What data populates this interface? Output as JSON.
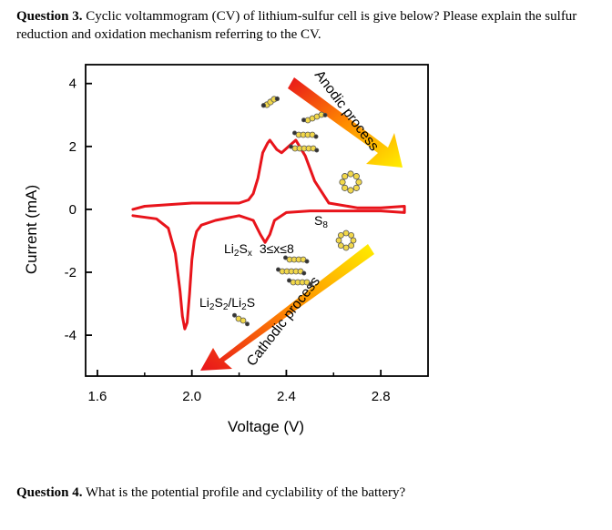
{
  "question3": {
    "label": "Question 3.",
    "text": "Cyclic voltammogram (CV) of lithium-sulfur cell is give below? Please explain the sulfur reduction and oxidation mechanism referring to the CV."
  },
  "question4": {
    "label": "Question 4.",
    "text": "What is the potential profile and cyclability of the battery?"
  },
  "figure": {
    "annotations": {
      "anodic": "Anodic process",
      "cathodic": "Cathodic process",
      "s8": "S",
      "s8_sub": "8",
      "li2sx_a": "Li",
      "li2sx_b": "2",
      "li2sx_c": "S",
      "li2sx_d": "x",
      "li2sx_range": "3≤x≤8",
      "li2s2_a": "Li",
      "li2s2_b": "2",
      "li2s2_c": "S",
      "li2s2_d": "2",
      "li2s2_e": "/Li",
      "li2s2_f": "2",
      "li2s2_g": "S"
    },
    "colors": {
      "curve": "#e8141b",
      "arrow_start": "#e8141b",
      "arrow_end": "#ffee00",
      "sulfur_atom": "#f2d84a",
      "lithium_atom": "#333333"
    }
  },
  "chart_data": {
    "type": "line",
    "title": "",
    "xlabel": "Voltage (V)",
    "ylabel": "Current (mA)",
    "xlim": [
      1.55,
      3.0
    ],
    "ylim": [
      -5.3,
      4.6
    ],
    "xticks": [
      "1.6",
      "2.0",
      "2.4",
      "2.8"
    ],
    "xtick_values": [
      1.6,
      2.0,
      2.4,
      2.8
    ],
    "yticks": [
      "4",
      "2",
      "0",
      "-2",
      "-4"
    ],
    "ytick_values": [
      4,
      2,
      0,
      -2,
      -4
    ],
    "series": [
      {
        "name": "",
        "x": [
          1.75,
          1.85,
          1.9,
          1.93,
          1.95,
          1.96,
          1.97,
          1.98,
          1.99,
          2.0,
          2.01,
          2.02,
          2.04,
          2.1,
          2.2,
          2.26,
          2.29,
          2.31,
          2.33,
          2.35,
          2.4,
          2.5,
          2.6,
          2.7,
          2.8,
          2.9,
          2.9,
          2.8,
          2.7,
          2.58,
          2.52,
          2.48,
          2.44,
          2.41,
          2.38,
          2.36,
          2.34,
          2.33,
          2.32,
          2.3,
          2.28,
          2.26,
          2.24,
          2.2,
          2.1,
          2.0,
          1.9,
          1.8,
          1.75
        ],
        "y": [
          -0.2,
          -0.3,
          -0.6,
          -1.4,
          -2.6,
          -3.4,
          -3.8,
          -3.6,
          -2.7,
          -1.6,
          -1.0,
          -0.7,
          -0.5,
          -0.35,
          -0.2,
          -0.35,
          -0.8,
          -1.05,
          -0.8,
          -0.35,
          -0.1,
          -0.05,
          -0.05,
          -0.05,
          -0.05,
          -0.1,
          0.1,
          0.05,
          0.05,
          0.2,
          0.9,
          1.7,
          2.2,
          2.0,
          1.8,
          1.9,
          2.1,
          2.2,
          2.1,
          1.8,
          1.0,
          0.5,
          0.3,
          0.2,
          0.2,
          0.2,
          0.15,
          0.1,
          0.0
        ]
      }
    ],
    "grid": false,
    "legend": "none"
  }
}
